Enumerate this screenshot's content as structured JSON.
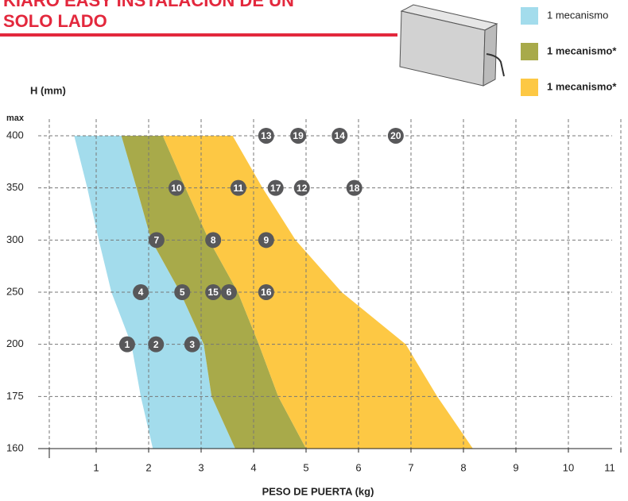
{
  "chart_data": {
    "type": "band-area",
    "title_lines": [
      "KIARO EASY INSTALACIÓN DE UN",
      "SOLO LADO"
    ],
    "y_label": "H (mm)",
    "y_top_note": "max",
    "x_label": "PESO DE PUERTA (kg)",
    "categories": [
      160,
      175,
      200,
      250,
      300,
      350,
      400
    ],
    "left_edge": [
      2.08,
      1.85,
      1.67,
      1.29,
      1.05,
      0.83,
      0.58
    ],
    "series": [
      {
        "name": "1 mecanismo",
        "color": "#a3dcec",
        "bold": false,
        "values": [
          3.65,
          3.2,
          3.05,
          2.6,
          2.05,
          1.77,
          1.48
        ]
      },
      {
        "name": "1 mecanismo*",
        "color": "#a8aa4a",
        "bold": true,
        "values": [
          5.0,
          4.47,
          4.1,
          3.7,
          3.15,
          2.7,
          2.27
        ]
      },
      {
        "name": "1 mecanismo*",
        "color": "#fdc844",
        "bold": true,
        "values": [
          8.18,
          7.5,
          6.9,
          5.68,
          4.8,
          4.17,
          3.6
        ]
      }
    ],
    "xlim": [
      0,
      11
    ],
    "xticks": [
      1,
      2,
      3,
      4,
      5,
      6,
      7,
      8,
      9,
      10,
      11
    ],
    "markers": [
      {
        "label": "1",
        "x": 1.59,
        "y": 200
      },
      {
        "label": "2",
        "x": 2.14,
        "y": 200
      },
      {
        "label": "3",
        "x": 2.83,
        "y": 200
      },
      {
        "label": "4",
        "x": 1.85,
        "y": 250
      },
      {
        "label": "5",
        "x": 2.64,
        "y": 250
      },
      {
        "label": "15",
        "x": 3.23,
        "y": 250
      },
      {
        "label": "6",
        "x": 3.53,
        "y": 250
      },
      {
        "label": "16",
        "x": 4.24,
        "y": 250
      },
      {
        "label": "7",
        "x": 2.15,
        "y": 300
      },
      {
        "label": "8",
        "x": 3.23,
        "y": 300
      },
      {
        "label": "9",
        "x": 4.24,
        "y": 300
      },
      {
        "label": "10",
        "x": 2.53,
        "y": 350
      },
      {
        "label": "11",
        "x": 3.71,
        "y": 350
      },
      {
        "label": "17",
        "x": 4.42,
        "y": 350
      },
      {
        "label": "12",
        "x": 4.92,
        "y": 350
      },
      {
        "label": "18",
        "x": 5.92,
        "y": 350
      },
      {
        "label": "13",
        "x": 4.24,
        "y": 400
      },
      {
        "label": "19",
        "x": 4.85,
        "y": 400
      },
      {
        "label": "14",
        "x": 5.64,
        "y": 400
      },
      {
        "label": "20",
        "x": 6.71,
        "y": 400
      }
    ],
    "grid": true
  }
}
